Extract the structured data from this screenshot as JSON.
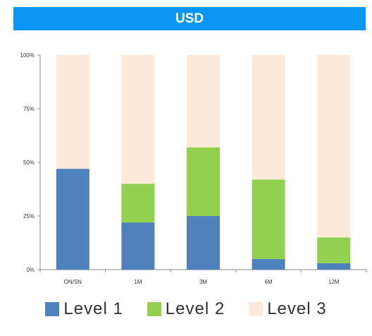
{
  "title": "USD",
  "chart_data": {
    "type": "bar",
    "stacked": true,
    "title": "USD",
    "categories": [
      "ON/SN",
      "1M",
      "3M",
      "6M",
      "12M"
    ],
    "series": [
      {
        "name": "Level 1",
        "color": "#4f81bd",
        "values": [
          47,
          22,
          25,
          5,
          3
        ]
      },
      {
        "name": "Level 2",
        "color": "#92d050",
        "values": [
          0,
          18,
          32,
          37,
          12
        ]
      },
      {
        "name": "Level 3",
        "color": "#fde9d9",
        "values": [
          53,
          60,
          43,
          58,
          85
        ]
      }
    ],
    "ylim": [
      0,
      100
    ],
    "yticks": [
      "0%",
      "25%",
      "50%",
      "75%",
      "100%"
    ],
    "grid": false,
    "legend_position": "bottom"
  }
}
